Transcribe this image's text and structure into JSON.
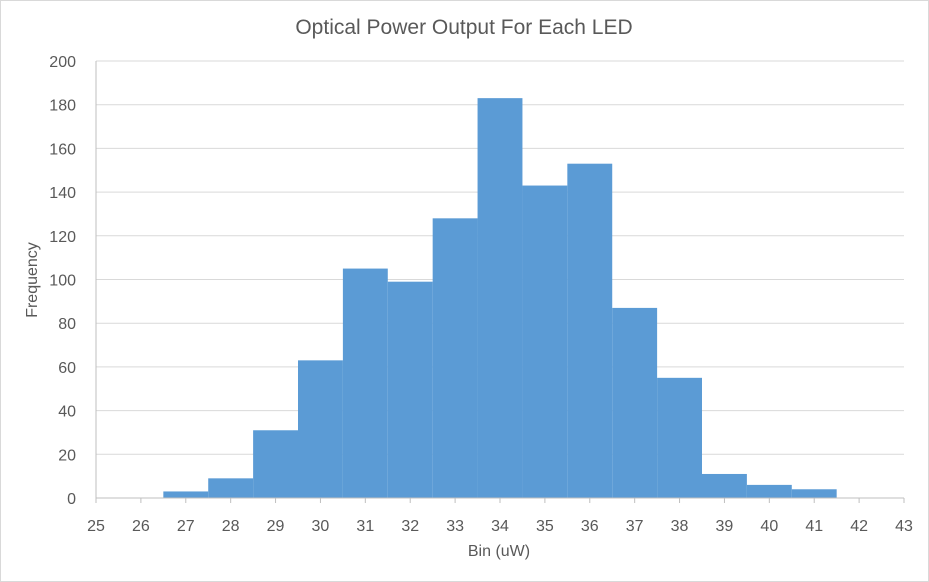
{
  "chart_data": {
    "type": "bar",
    "title": "Optical Power Output For Each LED",
    "xlabel": "Bin (uW)",
    "ylabel": "Frequency",
    "xlim": [
      25,
      43
    ],
    "ylim": [
      0,
      200
    ],
    "x_ticks": [
      "25",
      "26",
      "27",
      "28",
      "29",
      "30",
      "31",
      "32",
      "33",
      "34",
      "35",
      "36",
      "37",
      "38",
      "39",
      "40",
      "41",
      "42",
      "43"
    ],
    "y_ticks": [
      "0",
      "20",
      "40",
      "60",
      "80",
      "100",
      "120",
      "140",
      "160",
      "180",
      "200"
    ],
    "bar_width": 1,
    "bins": [
      27,
      28,
      29,
      30,
      31,
      32,
      33,
      34,
      35,
      36,
      37,
      38,
      39,
      40,
      41
    ],
    "values": [
      3,
      9,
      31,
      63,
      105,
      99,
      128,
      183,
      143,
      153,
      87,
      55,
      11,
      6,
      4
    ],
    "grid": true,
    "legend": "none",
    "bar_color": "#5b9bd5"
  }
}
